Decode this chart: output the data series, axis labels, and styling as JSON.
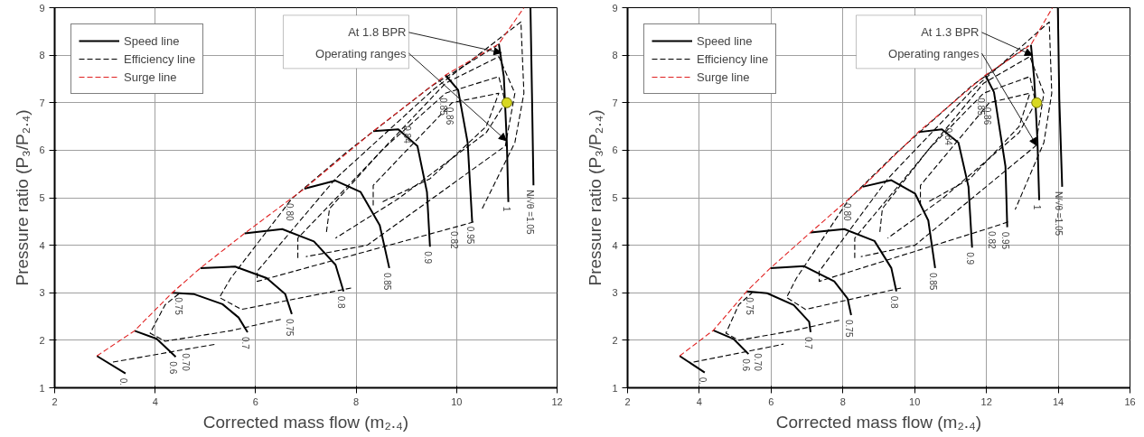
{
  "chart_data": [
    {
      "type": "line",
      "xlabel": "Corrected mass flow (m₂.₄)",
      "ylabel": "Pressure ratio (P₃/P₂.₄)",
      "xlim": [
        2,
        12
      ],
      "ylim": [
        1,
        9
      ],
      "xticks": [
        2,
        4,
        6,
        8,
        10,
        12
      ],
      "yticks": [
        1,
        2,
        3,
        4,
        5,
        6,
        7,
        8,
        9
      ],
      "grid": true,
      "legend": "top left",
      "series": [
        {
          "name": "Speed line",
          "color": "#000000",
          "line_style": "solid",
          "x": [
            2.84,
            3.41
          ],
          "values": [
            1.67,
            1.3
          ]
        },
        {
          "color": "#000000",
          "line_style": "solid",
          "x": [
            3.59,
            4.03,
            4.41
          ],
          "values": [
            2.2,
            2.03,
            1.65
          ]
        },
        {
          "color": "#000000",
          "line_style": "solid",
          "x": [
            4.34,
            4.78,
            5.34,
            5.66,
            5.84
          ],
          "values": [
            3.0,
            2.97,
            2.76,
            2.48,
            2.17
          ]
        },
        {
          "color": "#000000",
          "line_style": "solid",
          "x": [
            4.9,
            5.59,
            6.22,
            6.59,
            6.72
          ],
          "values": [
            3.52,
            3.55,
            3.31,
            2.97,
            2.55
          ]
        },
        {
          "color": "#000000",
          "line_style": "solid",
          "x": [
            5.78,
            6.53,
            7.16,
            7.59,
            7.75
          ],
          "values": [
            4.25,
            4.34,
            4.08,
            3.59,
            3.03
          ]
        },
        {
          "color": "#000000",
          "line_style": "solid",
          "x": [
            6.97,
            7.59,
            8.09,
            8.47,
            8.66
          ],
          "values": [
            5.19,
            5.36,
            5.12,
            4.42,
            3.52
          ]
        },
        {
          "color": "#000000",
          "line_style": "solid",
          "x": [
            8.34,
            8.84,
            9.22,
            9.41,
            9.47
          ],
          "values": [
            6.4,
            6.44,
            6.09,
            5.12,
            3.97
          ]
        },
        {
          "color": "#000000",
          "line_style": "solid",
          "x": [
            9.78,
            10.03,
            10.22,
            10.31
          ],
          "values": [
            7.58,
            7.27,
            6.16,
            4.49
          ]
        },
        {
          "color": "#000000",
          "line_style": "solid",
          "x": [
            10.84,
            10.94,
            11.0,
            11.03
          ],
          "values": [
            8.24,
            7.55,
            6.16,
            4.91
          ]
        },
        {
          "color": "#000000",
          "line_style": "solid",
          "x": [
            11.47,
            11.5,
            11.53
          ],
          "values": [
            9.0,
            7.2,
            5.26
          ]
        },
        {
          "name": "Efficiency line",
          "color": "#000000",
          "line_style": "dashed",
          "x": [
            3.16,
            4.66,
            5.22
          ],
          "values": [
            1.54,
            1.82,
            1.92
          ]
        },
        {
          "color": "#000000",
          "line_style": "dashed",
          "x": [
            6.5,
            5.5,
            4.2,
            3.9,
            4.2,
            4.5
          ],
          "values": [
            2.44,
            2.2,
            1.98,
            2.15,
            2.75,
            3.0
          ]
        },
        {
          "color": "#000000",
          "line_style": "dashed",
          "x": [
            7.9,
            5.72,
            5.28,
            5.5,
            6.72,
            7.8,
            9.5,
            10.8
          ],
          "values": [
            3.1,
            2.65,
            2.9,
            3.3,
            4.98,
            5.95,
            7.35,
            8.2
          ]
        },
        {
          "color": "#000000",
          "line_style": "dashed",
          "x": [
            10.34,
            10.0,
            6.03,
            6.03,
            7.59,
            9.53,
            11.28,
            11.34,
            11.16,
            10.5
          ],
          "values": [
            4.49,
            4.39,
            3.24,
            3.45,
            5.4,
            7.27,
            8.7,
            7.2,
            6.16,
            4.75
          ]
        },
        {
          "color": "#000000",
          "line_style": "dashed",
          "x": [
            6.84,
            6.84,
            8.22,
            9.06,
            9.78,
            10.84,
            11.16,
            10.97,
            8.22,
            7.0
          ],
          "values": [
            3.73,
            4.15,
            5.67,
            6.61,
            7.41,
            7.97,
            7.2,
            6.09,
            4.0,
            3.76
          ]
        },
        {
          "color": "#000000",
          "line_style": "dashed",
          "x": [
            7.41,
            7.47,
            8.53,
            9.78,
            10.84,
            10.97,
            10.59,
            8.84,
            7.59
          ],
          "values": [
            4.28,
            4.77,
            6.02,
            7.2,
            7.55,
            7.0,
            6.37,
            4.98,
            4.15
          ]
        },
        {
          "color": "#000000",
          "line_style": "dashed",
          "x": [
            8.34,
            8.34,
            9.47,
            9.91,
            10.84,
            10.59,
            9.47,
            8.5
          ],
          "values": [
            4.84,
            5.26,
            6.51,
            7.0,
            7.2,
            6.5,
            5.4,
            4.9
          ]
        },
        {
          "name": "Surge line",
          "color": "#e02020",
          "line_style": "dashed",
          "x": [
            2.84,
            3.59,
            4.34,
            4.9,
            5.78,
            6.97,
            8.34,
            9.78,
            10.84,
            11.34
          ],
          "values": [
            1.67,
            2.2,
            3.0,
            3.52,
            4.25,
            5.19,
            6.4,
            7.58,
            8.24,
            9.0
          ]
        },
        {
          "type": "scatter",
          "color": "#d8d820",
          "marker": "circle",
          "x": [
            11.0
          ],
          "values": [
            7.0
          ]
        }
      ],
      "annotations": [
        {
          "text": "At 1.8 BPR",
          "x": 10.89,
          "y": 8.05
        },
        {
          "text": "Operating ranges",
          "x": 10.99,
          "y": 6.2
        },
        {
          "text": "0.",
          "x": 3.41,
          "y": 1.3
        },
        {
          "text": "0.6",
          "x": 4.41,
          "y": 1.65
        },
        {
          "text": "0.7",
          "x": 5.84,
          "y": 2.17
        },
        {
          "text": "0.75",
          "x": 6.72,
          "y": 2.55
        },
        {
          "text": "0.8",
          "x": 7.75,
          "y": 3.03
        },
        {
          "text": "0.85",
          "x": 8.66,
          "y": 3.52
        },
        {
          "text": "0.9",
          "x": 9.47,
          "y": 3.97
        },
        {
          "text": "0.95",
          "x": 10.31,
          "y": 4.49
        },
        {
          "text": "1",
          "x": 11.03,
          "y": 4.91
        },
        {
          "text": "N/√θ =1.05",
          "x": 11.53,
          "y": 5.26
        },
        {
          "text": "0.70",
          "x": 4.66,
          "y": 1.82
        },
        {
          "text": "0.75",
          "x": 4.5,
          "y": 3.0
        },
        {
          "text": "0.80",
          "x": 6.72,
          "y": 4.98
        },
        {
          "text": "0.82",
          "x": 10.0,
          "y": 4.39
        },
        {
          "text": "0.84",
          "x": 9.06,
          "y": 6.61
        },
        {
          "text": "0.85",
          "x": 9.78,
          "y": 7.2
        },
        {
          "text": "0.86",
          "x": 9.91,
          "y": 7.0
        }
      ]
    },
    {
      "type": "line",
      "xlabel": "Corrected mass flow (m₂.₄)",
      "ylabel": "Pressure ratio (P₃/P₂.₄)",
      "xlim": [
        2,
        16
      ],
      "ylim": [
        1,
        9
      ],
      "xticks": [
        2,
        4,
        6,
        8,
        10,
        12,
        14,
        16
      ],
      "yticks": [
        1,
        2,
        3,
        4,
        5,
        6,
        7,
        8,
        9
      ],
      "grid": true,
      "legend": "top left",
      "series": [
        {
          "name": "Speed line",
          "color": "#000000",
          "line_style": "solid",
          "x": [
            3.45,
            4.15
          ],
          "values": [
            1.67,
            1.32
          ]
        },
        {
          "color": "#000000",
          "line_style": "solid",
          "x": [
            4.39,
            4.95,
            5.37
          ],
          "values": [
            2.21,
            2.03,
            1.71
          ]
        },
        {
          "color": "#000000",
          "line_style": "solid",
          "x": [
            5.32,
            5.89,
            6.63,
            7.06,
            7.1
          ],
          "values": [
            3.03,
            2.99,
            2.74,
            2.39,
            2.17
          ]
        },
        {
          "color": "#000000",
          "line_style": "solid",
          "x": [
            5.98,
            6.92,
            7.76,
            8.13,
            8.23
          ],
          "values": [
            3.52,
            3.56,
            3.24,
            2.88,
            2.53
          ]
        },
        {
          "color": "#000000",
          "line_style": "solid",
          "x": [
            7.1,
            8.04,
            8.88,
            9.35,
            9.49
          ],
          "values": [
            4.27,
            4.34,
            4.09,
            3.52,
            3.03
          ]
        },
        {
          "color": "#000000",
          "line_style": "solid",
          "x": [
            8.55,
            9.35,
            10.01,
            10.38,
            10.57
          ],
          "values": [
            5.23,
            5.37,
            5.09,
            4.52,
            3.52
          ]
        },
        {
          "color": "#000000",
          "line_style": "solid",
          "x": [
            10.1,
            10.76,
            11.22,
            11.5,
            11.6
          ],
          "values": [
            6.38,
            6.44,
            6.16,
            5.23,
            3.95
          ]
        },
        {
          "color": "#000000",
          "line_style": "solid",
          "x": [
            11.97,
            12.21,
            12.53,
            12.58
          ],
          "values": [
            7.58,
            7.22,
            5.66,
            4.38
          ]
        },
        {
          "color": "#000000",
          "line_style": "solid",
          "x": [
            13.24,
            13.33,
            13.42,
            13.47
          ],
          "values": [
            8.22,
            7.51,
            6.23,
            4.95
          ]
        },
        {
          "color": "#000000",
          "line_style": "solid",
          "x": [
            13.99,
            14.03,
            14.11
          ],
          "values": [
            9.0,
            7.08,
            5.23
          ]
        },
        {
          "name": "Efficiency line",
          "color": "#000000",
          "line_style": "dashed",
          "x": [
            3.84,
            5.7,
            6.35
          ],
          "values": [
            1.54,
            1.82,
            1.92
          ]
        },
        {
          "color": "#000000",
          "line_style": "dashed",
          "x": [
            7.9,
            6.6,
            5.1,
            4.74,
            5.1,
            5.47
          ],
          "values": [
            2.42,
            2.2,
            2.0,
            2.15,
            2.75,
            3.0
          ]
        },
        {
          "color": "#000000",
          "line_style": "dashed",
          "x": [
            9.62,
            6.96,
            6.43,
            6.7,
            8.18,
            9.5,
            11.58,
            13.16
          ],
          "values": [
            3.1,
            2.65,
            2.9,
            3.3,
            4.98,
            5.95,
            7.35,
            8.2
          ]
        },
        {
          "color": "#000000",
          "line_style": "dashed",
          "x": [
            12.6,
            12.2,
            7.34,
            7.34,
            9.25,
            11.61,
            13.75,
            13.82,
            13.6,
            12.8
          ],
          "values": [
            4.49,
            4.39,
            3.24,
            3.45,
            5.4,
            7.27,
            8.7,
            7.2,
            6.16,
            4.75
          ]
        },
        {
          "color": "#000000",
          "line_style": "dashed",
          "x": [
            8.33,
            8.33,
            10.01,
            11.0,
            11.92,
            13.21,
            13.6,
            13.37,
            10.01,
            8.5
          ],
          "values": [
            3.73,
            4.15,
            5.67,
            6.57,
            7.41,
            7.97,
            7.2,
            6.09,
            4.0,
            3.76
          ]
        },
        {
          "color": "#000000",
          "line_style": "dashed",
          "x": [
            9.03,
            9.1,
            10.39,
            11.92,
            13.21,
            13.37,
            12.91,
            10.77,
            9.25
          ],
          "values": [
            4.28,
            4.77,
            6.02,
            7.2,
            7.55,
            7.0,
            6.37,
            4.98,
            4.15
          ]
        },
        {
          "color": "#000000",
          "line_style": "dashed",
          "x": [
            10.16,
            10.16,
            11.54,
            12.08,
            13.21,
            12.91,
            11.54,
            10.35
          ],
          "values": [
            4.84,
            5.26,
            6.51,
            7.0,
            7.2,
            6.5,
            5.4,
            4.9
          ]
        },
        {
          "name": "Surge line",
          "color": "#e02020",
          "line_style": "dashed",
          "x": [
            3.45,
            4.39,
            5.32,
            5.98,
            7.1,
            8.55,
            10.1,
            11.97,
            13.24,
            13.84
          ],
          "values": [
            1.67,
            2.21,
            3.03,
            3.52,
            4.27,
            5.23,
            6.38,
            7.58,
            8.22,
            9.0
          ]
        },
        {
          "type": "scatter",
          "color": "#d8d820",
          "marker": "circle",
          "x": [
            13.4
          ],
          "values": [
            7.0
          ]
        }
      ],
      "annotations": [
        {
          "text": "At 1.3 BPR",
          "x": 13.28,
          "y": 8.0
        },
        {
          "text": "Operating ranges",
          "x": 13.4,
          "y": 6.1
        },
        {
          "text": "0.",
          "x": 4.15,
          "y": 1.32
        },
        {
          "text": "0.6",
          "x": 5.37,
          "y": 1.71
        },
        {
          "text": "0.7",
          "x": 7.1,
          "y": 2.17
        },
        {
          "text": "0.75",
          "x": 8.23,
          "y": 2.53
        },
        {
          "text": "0.8",
          "x": 9.49,
          "y": 3.03
        },
        {
          "text": "0.85",
          "x": 10.57,
          "y": 3.52
        },
        {
          "text": "0.9",
          "x": 11.6,
          "y": 3.95
        },
        {
          "text": "0.95",
          "x": 12.58,
          "y": 4.38
        },
        {
          "text": "1",
          "x": 13.47,
          "y": 4.95
        },
        {
          "text": "N/√θ =1.05",
          "x": 14.11,
          "y": 5.23
        },
        {
          "text": "0.70",
          "x": 5.7,
          "y": 1.82
        },
        {
          "text": "0.75",
          "x": 5.47,
          "y": 3.0
        },
        {
          "text": "0.80",
          "x": 8.18,
          "y": 4.98
        },
        {
          "text": "0.82",
          "x": 12.2,
          "y": 4.39
        },
        {
          "text": "0.84",
          "x": 11.0,
          "y": 6.57
        },
        {
          "text": "0.85",
          "x": 11.92,
          "y": 7.2
        },
        {
          "text": "0.86",
          "x": 12.08,
          "y": 7.0
        }
      ]
    }
  ]
}
